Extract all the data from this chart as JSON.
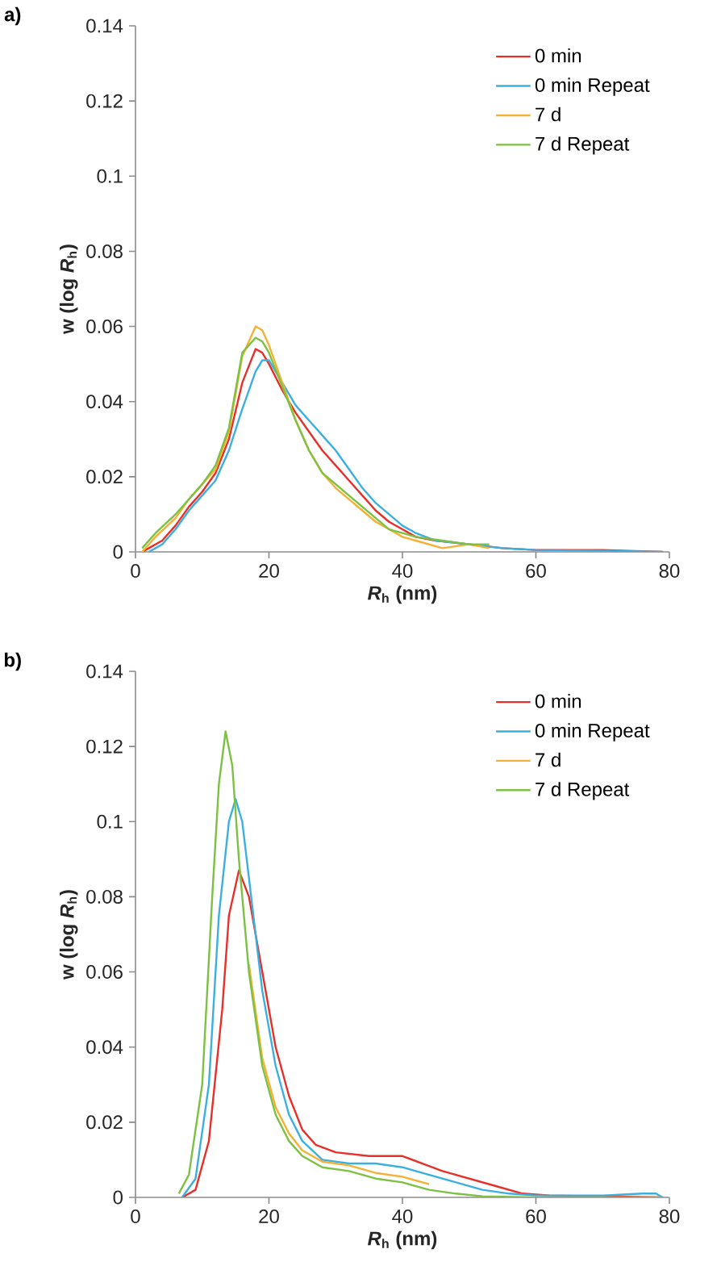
{
  "chart_data": [
    {
      "type": "line",
      "title": "a)",
      "xlabel": "*R*$_{h}$ (nm)",
      "ylabel": "w (log *R*$_{h}$)",
      "xlim": [
        0,
        80
      ],
      "ylim": [
        0,
        0.14
      ],
      "xticks": [
        0,
        20,
        40,
        60,
        80
      ],
      "yticks": [
        0,
        0.02,
        0.04,
        0.06,
        0.08,
        0.1,
        0.12,
        0.14
      ],
      "legend": "top right",
      "line_style": "solid",
      "grid": false,
      "series": [
        {
          "name": "0 min",
          "color": "#e8302a",
          "x": [
            1,
            2,
            4,
            6,
            8,
            10,
            12,
            14,
            16,
            18,
            19,
            20,
            22,
            24,
            26,
            28,
            30,
            32,
            34,
            36,
            38,
            40,
            42,
            45,
            50,
            55,
            60,
            70,
            79
          ],
          "values": [
            0,
            0.001,
            0.003,
            0.007,
            0.012,
            0.016,
            0.021,
            0.03,
            0.045,
            0.054,
            0.053,
            0.05,
            0.043,
            0.037,
            0.032,
            0.027,
            0.023,
            0.019,
            0.015,
            0.011,
            0.008,
            0.006,
            0.004,
            0.003,
            0.002,
            0.001,
            0.0005,
            0.0005,
            0
          ]
        },
        {
          "name": "0 min Repeat",
          "color": "#3bb0e0",
          "x": [
            2,
            4,
            6,
            8,
            10,
            12,
            14,
            16,
            18,
            19,
            20,
            22,
            24,
            26,
            28,
            30,
            32,
            34,
            36,
            38,
            40,
            42,
            45,
            50,
            55,
            60,
            70,
            79
          ],
          "values": [
            0,
            0.002,
            0.006,
            0.011,
            0.015,
            0.019,
            0.027,
            0.038,
            0.048,
            0.051,
            0.051,
            0.045,
            0.039,
            0.035,
            0.031,
            0.027,
            0.022,
            0.017,
            0.013,
            0.01,
            0.007,
            0.005,
            0.003,
            0.002,
            0.001,
            0.0005,
            0.0003,
            0
          ]
        },
        {
          "name": "7 d",
          "color": "#f5b133",
          "x": [
            1,
            3,
            6,
            8,
            10,
            12,
            14,
            16,
            18,
            19,
            20,
            22,
            24,
            26,
            28,
            30,
            32,
            34,
            36,
            38,
            40,
            42,
            44,
            46,
            50,
            53
          ],
          "values": [
            0,
            0.004,
            0.009,
            0.014,
            0.018,
            0.022,
            0.032,
            0.052,
            0.06,
            0.059,
            0.055,
            0.045,
            0.035,
            0.027,
            0.021,
            0.017,
            0.014,
            0.011,
            0.008,
            0.006,
            0.004,
            0.003,
            0.002,
            0.001,
            0.002,
            0.001
          ]
        },
        {
          "name": "7 d Repeat",
          "color": "#7dc142",
          "x": [
            1,
            3,
            6,
            8,
            10,
            12,
            14,
            16,
            18,
            19,
            20,
            22,
            24,
            26,
            28,
            30,
            32,
            34,
            36,
            38,
            40,
            42,
            46,
            50,
            53
          ],
          "values": [
            0.001,
            0.005,
            0.01,
            0.014,
            0.018,
            0.023,
            0.033,
            0.053,
            0.057,
            0.056,
            0.053,
            0.044,
            0.035,
            0.027,
            0.021,
            0.018,
            0.015,
            0.012,
            0.009,
            0.006,
            0.005,
            0.004,
            0.003,
            0.002,
            0.002
          ]
        }
      ]
    },
    {
      "type": "line",
      "title": "b)",
      "xlabel": "*R*$_{h}$ (nm)",
      "ylabel": "w (log *R*$_{h}$)",
      "xlim": [
        0,
        80
      ],
      "ylim": [
        0,
        0.14
      ],
      "xticks": [
        0,
        20,
        40,
        60,
        80
      ],
      "yticks": [
        0,
        0.02,
        0.04,
        0.06,
        0.08,
        0.1,
        0.12,
        0.14
      ],
      "legend": "top right",
      "line_style": "solid",
      "grid": false,
      "series": [
        {
          "name": "0 min",
          "color": "#e8302a",
          "x": [
            7,
            9,
            11,
            13,
            14,
            15.5,
            17,
            19,
            21,
            23,
            25,
            27,
            30,
            35,
            40,
            43,
            46,
            50,
            54,
            58,
            62,
            70,
            79
          ],
          "values": [
            0,
            0.002,
            0.015,
            0.05,
            0.075,
            0.087,
            0.08,
            0.06,
            0.04,
            0.027,
            0.018,
            0.014,
            0.012,
            0.011,
            0.011,
            0.009,
            0.007,
            0.005,
            0.003,
            0.001,
            0.0005,
            0.0003,
            0
          ]
        },
        {
          "name": "0 min Repeat",
          "color": "#3bb0e0",
          "x": [
            7,
            9,
            11,
            12.5,
            14,
            15,
            16,
            17,
            19,
            21,
            23,
            25,
            28,
            32,
            36,
            40,
            44,
            48,
            52,
            56,
            60,
            70,
            76,
            78,
            79
          ],
          "values": [
            0,
            0.005,
            0.03,
            0.075,
            0.1,
            0.106,
            0.1,
            0.085,
            0.055,
            0.035,
            0.022,
            0.015,
            0.01,
            0.009,
            0.009,
            0.008,
            0.006,
            0.004,
            0.002,
            0.001,
            0.0005,
            0.0005,
            0.001,
            0.001,
            0
          ]
        },
        {
          "name": "7 d",
          "color": "#f5b133",
          "x": [
            17,
            19,
            21,
            23,
            25,
            28,
            32,
            36,
            40,
            44
          ],
          "values": [
            0.062,
            0.037,
            0.024,
            0.017,
            0.0125,
            0.0095,
            0.0085,
            0.0065,
            0.0055,
            0.0035
          ]
        },
        {
          "name": "7 d Repeat",
          "color": "#7dc142",
          "x": [
            6.5,
            8,
            10,
            11.5,
            12.5,
            13.5,
            14.5,
            15.5,
            17,
            19,
            21,
            23,
            25,
            28,
            32,
            36,
            40,
            44,
            48,
            52,
            60,
            70,
            79
          ],
          "values": [
            0.001,
            0.006,
            0.03,
            0.08,
            0.11,
            0.124,
            0.115,
            0.09,
            0.06,
            0.035,
            0.022,
            0.015,
            0.011,
            0.008,
            0.007,
            0.005,
            0.004,
            0.002,
            0.001,
            0.0003,
            0,
            0,
            0
          ]
        }
      ]
    }
  ]
}
